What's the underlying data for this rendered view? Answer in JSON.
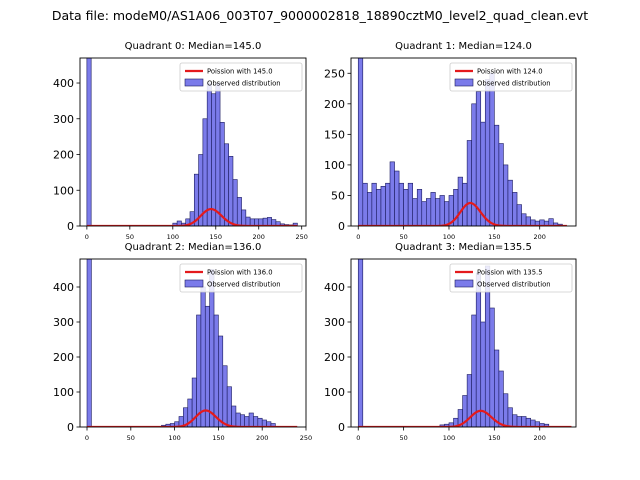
{
  "figure": {
    "suptitle": "Data file: modeM0/AS1A06_003T07_9000002818_18890cztM0_level2_quad_clean.evt"
  },
  "colors": {
    "bar_fill": "#7b7bea",
    "bar_edge": "#1a1a5e",
    "poisson_line": "#e41a1c"
  },
  "chart_data": [
    {
      "type": "bar",
      "title": "Quadrant 0: Median=145.0",
      "legend": [
        "Poission with 145.0",
        "Observed distribution"
      ],
      "legend_loc": "top-right",
      "xlim": [
        -8,
        255
      ],
      "ylim": [
        0,
        470
      ],
      "xticks": [
        0,
        50,
        100,
        150,
        200,
        250
      ],
      "yticks": [
        0,
        100,
        200,
        300,
        400
      ],
      "bin_width": 5,
      "bars": [
        {
          "x": 0,
          "y": 470
        },
        {
          "x": 100,
          "y": 8
        },
        {
          "x": 105,
          "y": 14
        },
        {
          "x": 110,
          "y": 8
        },
        {
          "x": 115,
          "y": 20
        },
        {
          "x": 120,
          "y": 40
        },
        {
          "x": 125,
          "y": 145
        },
        {
          "x": 130,
          "y": 200
        },
        {
          "x": 135,
          "y": 300
        },
        {
          "x": 140,
          "y": 400
        },
        {
          "x": 145,
          "y": 370
        },
        {
          "x": 150,
          "y": 400
        },
        {
          "x": 155,
          "y": 290
        },
        {
          "x": 160,
          "y": 230
        },
        {
          "x": 165,
          "y": 195
        },
        {
          "x": 170,
          "y": 130
        },
        {
          "x": 175,
          "y": 80
        },
        {
          "x": 180,
          "y": 45
        },
        {
          "x": 185,
          "y": 25
        },
        {
          "x": 190,
          "y": 20
        },
        {
          "x": 195,
          "y": 20
        },
        {
          "x": 200,
          "y": 20
        },
        {
          "x": 205,
          "y": 22
        },
        {
          "x": 210,
          "y": 24
        },
        {
          "x": 215,
          "y": 18
        },
        {
          "x": 220,
          "y": 12
        },
        {
          "x": 225,
          "y": 6
        },
        {
          "x": 230,
          "y": 4
        },
        {
          "x": 235,
          "y": 3
        },
        {
          "x": 240,
          "y": 8
        }
      ],
      "poisson": {
        "mean": 145.0,
        "scale": 1430,
        "x_range": [
          0,
          245
        ]
      }
    },
    {
      "type": "bar",
      "title": "Quadrant 1: Median=124.0",
      "legend": [
        "Poission with 124.0",
        "Observed distribution"
      ],
      "legend_loc": "top-right",
      "xlim": [
        -8,
        240
      ],
      "ylim": [
        0,
        275
      ],
      "xticks": [
        0,
        50,
        100,
        150,
        200
      ],
      "yticks": [
        0,
        50,
        100,
        150,
        200,
        250
      ],
      "bin_width": 5,
      "bars": [
        {
          "x": 0,
          "y": 275
        },
        {
          "x": 5,
          "y": 70
        },
        {
          "x": 10,
          "y": 55
        },
        {
          "x": 15,
          "y": 70
        },
        {
          "x": 20,
          "y": 60
        },
        {
          "x": 25,
          "y": 65
        },
        {
          "x": 30,
          "y": 70
        },
        {
          "x": 35,
          "y": 105
        },
        {
          "x": 40,
          "y": 90
        },
        {
          "x": 45,
          "y": 70
        },
        {
          "x": 50,
          "y": 60
        },
        {
          "x": 55,
          "y": 70
        },
        {
          "x": 60,
          "y": 45
        },
        {
          "x": 65,
          "y": 60
        },
        {
          "x": 70,
          "y": 40
        },
        {
          "x": 75,
          "y": 45
        },
        {
          "x": 80,
          "y": 55
        },
        {
          "x": 85,
          "y": 45
        },
        {
          "x": 90,
          "y": 50
        },
        {
          "x": 95,
          "y": 40
        },
        {
          "x": 100,
          "y": 50
        },
        {
          "x": 105,
          "y": 60
        },
        {
          "x": 110,
          "y": 80
        },
        {
          "x": 115,
          "y": 70
        },
        {
          "x": 120,
          "y": 140
        },
        {
          "x": 125,
          "y": 200
        },
        {
          "x": 130,
          "y": 220
        },
        {
          "x": 135,
          "y": 170
        },
        {
          "x": 140,
          "y": 240
        },
        {
          "x": 145,
          "y": 250
        },
        {
          "x": 150,
          "y": 165
        },
        {
          "x": 155,
          "y": 135
        },
        {
          "x": 160,
          "y": 100
        },
        {
          "x": 165,
          "y": 75
        },
        {
          "x": 170,
          "y": 55
        },
        {
          "x": 175,
          "y": 35
        },
        {
          "x": 180,
          "y": 20
        },
        {
          "x": 185,
          "y": 15
        },
        {
          "x": 190,
          "y": 10
        },
        {
          "x": 195,
          "y": 8
        },
        {
          "x": 200,
          "y": 10
        },
        {
          "x": 205,
          "y": 8
        },
        {
          "x": 210,
          "y": 12
        },
        {
          "x": 215,
          "y": 5
        },
        {
          "x": 220,
          "y": 3
        }
      ],
      "poisson": {
        "mean": 124.0,
        "scale": 1050,
        "x_range": [
          0,
          230
        ]
      }
    },
    {
      "type": "bar",
      "title": "Quadrant 2: Median=136.0",
      "legend": [
        "Poission with 136.0",
        "Observed distribution"
      ],
      "legend_loc": "top-right",
      "xlim": [
        -8,
        250
      ],
      "ylim": [
        0,
        480
      ],
      "xticks": [
        0,
        50,
        100,
        150,
        200,
        250
      ],
      "yticks": [
        0,
        100,
        200,
        300,
        400
      ],
      "bin_width": 5,
      "bars": [
        {
          "x": 0,
          "y": 480
        },
        {
          "x": 85,
          "y": 5
        },
        {
          "x": 90,
          "y": 8
        },
        {
          "x": 95,
          "y": 10
        },
        {
          "x": 100,
          "y": 15
        },
        {
          "x": 105,
          "y": 30
        },
        {
          "x": 110,
          "y": 55
        },
        {
          "x": 115,
          "y": 80
        },
        {
          "x": 120,
          "y": 140
        },
        {
          "x": 125,
          "y": 320
        },
        {
          "x": 130,
          "y": 400
        },
        {
          "x": 135,
          "y": 345
        },
        {
          "x": 140,
          "y": 450
        },
        {
          "x": 145,
          "y": 320
        },
        {
          "x": 150,
          "y": 260
        },
        {
          "x": 155,
          "y": 175
        },
        {
          "x": 160,
          "y": 115
        },
        {
          "x": 165,
          "y": 60
        },
        {
          "x": 170,
          "y": 40
        },
        {
          "x": 175,
          "y": 35
        },
        {
          "x": 180,
          "y": 30
        },
        {
          "x": 185,
          "y": 40
        },
        {
          "x": 190,
          "y": 30
        },
        {
          "x": 195,
          "y": 25
        },
        {
          "x": 200,
          "y": 20
        },
        {
          "x": 205,
          "y": 15
        },
        {
          "x": 210,
          "y": 10
        }
      ],
      "poisson": {
        "mean": 136.0,
        "scale": 1380,
        "x_range": [
          0,
          240
        ]
      }
    },
    {
      "type": "bar",
      "title": "Quadrant 3: Median=135.5",
      "legend": [
        "Poission with 135.5",
        "Observed distribution"
      ],
      "legend_loc": "top-right",
      "xlim": [
        -8,
        240
      ],
      "ylim": [
        0,
        480
      ],
      "xticks": [
        0,
        50,
        100,
        150,
        200
      ],
      "yticks": [
        0,
        100,
        200,
        300,
        400
      ],
      "bin_width": 5,
      "bars": [
        {
          "x": 0,
          "y": 480
        },
        {
          "x": 90,
          "y": 6
        },
        {
          "x": 95,
          "y": 8
        },
        {
          "x": 100,
          "y": 12
        },
        {
          "x": 105,
          "y": 25
        },
        {
          "x": 110,
          "y": 50
        },
        {
          "x": 115,
          "y": 90
        },
        {
          "x": 120,
          "y": 150
        },
        {
          "x": 125,
          "y": 320
        },
        {
          "x": 130,
          "y": 440
        },
        {
          "x": 135,
          "y": 300
        },
        {
          "x": 140,
          "y": 460
        },
        {
          "x": 145,
          "y": 340
        },
        {
          "x": 150,
          "y": 220
        },
        {
          "x": 155,
          "y": 160
        },
        {
          "x": 160,
          "y": 95
        },
        {
          "x": 165,
          "y": 55
        },
        {
          "x": 170,
          "y": 35
        },
        {
          "x": 175,
          "y": 30
        },
        {
          "x": 180,
          "y": 30
        },
        {
          "x": 185,
          "y": 25
        },
        {
          "x": 190,
          "y": 20
        },
        {
          "x": 195,
          "y": 15
        },
        {
          "x": 200,
          "y": 10
        },
        {
          "x": 205,
          "y": 8
        }
      ],
      "poisson": {
        "mean": 135.5,
        "scale": 1350,
        "x_range": [
          0,
          235
        ]
      }
    }
  ]
}
